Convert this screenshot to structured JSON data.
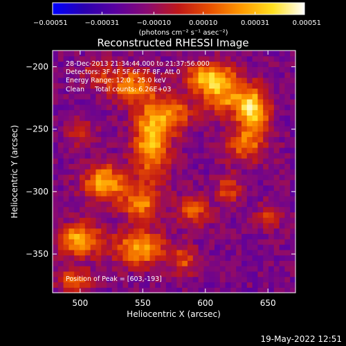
{
  "chart_data": {
    "type": "heatmap",
    "title": "Reconstructed RHESSI Image",
    "xlabel": "Heliocentric X (arcsec)",
    "ylabel": "Heliocentric Y (arcsec)",
    "xlim": [
      478,
      672
    ],
    "ylim": [
      -381,
      -187
    ],
    "x_ticks": [
      500,
      550,
      600,
      650
    ],
    "y_ticks": [
      -200,
      -250,
      -300,
      -350
    ],
    "colorbar": {
      "min": -0.00051,
      "max": 0.00051,
      "tick_values": [
        -0.00051,
        -0.00031,
        -0.0001,
        0.0001,
        0.00031,
        0.00051
      ],
      "tick_labels": [
        "-0.00051",
        "-0.00031",
        "-0.00010",
        "0.00010",
        "0.00031",
        "0.00051"
      ],
      "unit_label": "(photons cm⁻² s⁻¹ asec⁻²)"
    },
    "annotations": {
      "time_range": "28-Dec-2013 21:34:44.000 to 21:37:56.000",
      "detectors": "Detectors: 3F 4F 5F 6F 7F 8F, Att 0",
      "energy_range": "Energy Range: 12.0 - 25.0 keV",
      "method_counts": "Clean     Total counts: 6.26E+03",
      "peak_position": "Position of Peak = [603,-193]"
    },
    "peak": {
      "x": 603,
      "y": -193
    },
    "timestamp": "19-May-2022 12:51",
    "grid": false,
    "colormap": [
      "#0000ff",
      "#2a00b0",
      "#5a00a0",
      "#8a0a72",
      "#c01818",
      "#e85000",
      "#ff9a00",
      "#ffe020",
      "#ffffff"
    ],
    "grid_resolution": {
      "nx": 45,
      "ny": 45
    },
    "sources": [
      {
        "x": 604,
        "y": -208,
        "sx": 14,
        "sy": 8,
        "amp": 0.00052
      },
      {
        "x": 615,
        "y": -225,
        "sx": 14,
        "sy": 9,
        "amp": 0.00038
      },
      {
        "x": 638,
        "y": -235,
        "sx": 9,
        "sy": 13,
        "amp": 0.0005
      },
      {
        "x": 632,
        "y": -262,
        "sx": 12,
        "sy": 10,
        "amp": 0.0003
      },
      {
        "x": 557,
        "y": -258,
        "sx": 10,
        "sy": 22,
        "amp": 0.00052
      },
      {
        "x": 540,
        "y": -215,
        "sx": 12,
        "sy": 10,
        "amp": 0.00036
      },
      {
        "x": 575,
        "y": -238,
        "sx": 10,
        "sy": 10,
        "amp": 0.00032
      },
      {
        "x": 520,
        "y": -293,
        "sx": 12,
        "sy": 10,
        "amp": 0.00048
      },
      {
        "x": 548,
        "y": -310,
        "sx": 10,
        "sy": 9,
        "amp": 0.00038
      },
      {
        "x": 500,
        "y": -338,
        "sx": 13,
        "sy": 9,
        "amp": 0.00046
      },
      {
        "x": 548,
        "y": -345,
        "sx": 14,
        "sy": 10,
        "amp": 0.00045
      },
      {
        "x": 590,
        "y": -315,
        "sx": 9,
        "sy": 9,
        "amp": 0.0003
      },
      {
        "x": 618,
        "y": -298,
        "sx": 7,
        "sy": 8,
        "amp": 0.00026
      },
      {
        "x": 650,
        "y": -320,
        "sx": 7,
        "sy": 7,
        "amp": 0.00022
      },
      {
        "x": 495,
        "y": -370,
        "sx": 10,
        "sy": 7,
        "amp": 0.0003
      },
      {
        "x": 583,
        "y": -355,
        "sx": 8,
        "sy": 8,
        "amp": 0.00026
      },
      {
        "x": 500,
        "y": -252,
        "sx": 9,
        "sy": 9,
        "amp": 0.00018
      },
      {
        "x": 515,
        "y": -205,
        "sx": 9,
        "sy": 8,
        "amp": 0.0002
      }
    ],
    "background_level": -0.00017
  }
}
